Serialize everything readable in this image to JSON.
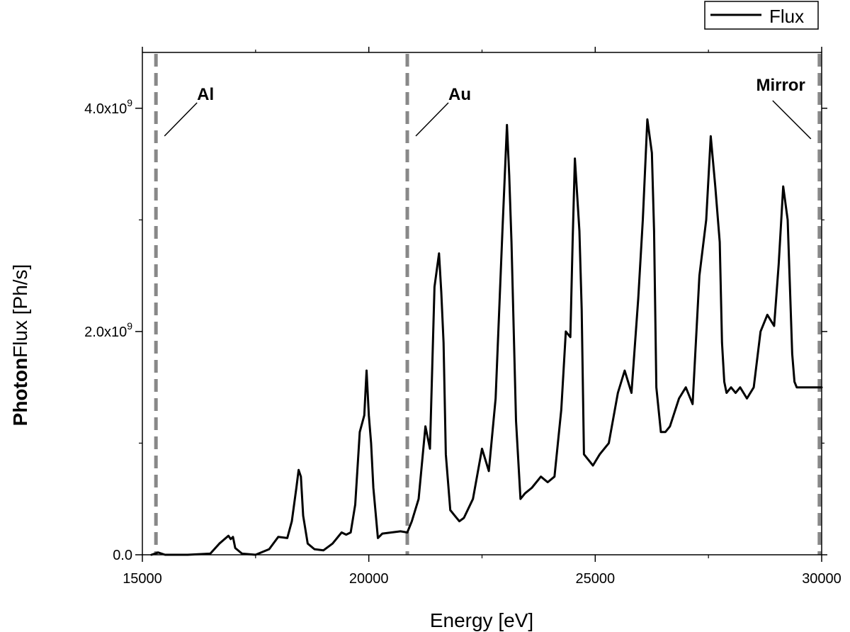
{
  "chart_data": {
    "type": "line",
    "title": "",
    "xlabel": "Energy [eV]",
    "ylabel_bold": "Photon",
    "ylabel_rest": "Flux [Ph/s]",
    "xlim": [
      15000,
      30000
    ],
    "ylim": [
      0,
      4500000000.0
    ],
    "x_ticks": [
      {
        "value": 15000,
        "label": "15000"
      },
      {
        "value": 20000,
        "label": "20000"
      },
      {
        "value": 25000,
        "label": "25000"
      },
      {
        "value": 30000,
        "label": "30000"
      }
    ],
    "y_ticks": [
      {
        "value": 0,
        "mantissa": "0.0",
        "exponent": ""
      },
      {
        "value": 2000000000.0,
        "mantissa": "2.0x10",
        "exponent": "9"
      },
      {
        "value": 4000000000.0,
        "mantissa": "4.0x10",
        "exponent": "9"
      }
    ],
    "y_minor_ticks": [
      1000000000.0,
      3000000000.0
    ],
    "legend": {
      "entries": [
        "Flux"
      ],
      "position": "top-right"
    },
    "series": [
      {
        "name": "Flux",
        "color": "#000000",
        "x": [
          15200,
          15350,
          15500,
          16000,
          16500,
          16700,
          16900,
          16950,
          17000,
          17050,
          17200,
          17500,
          17800,
          18000,
          18200,
          18300,
          18400,
          18450,
          18500,
          18550,
          18650,
          18800,
          19000,
          19200,
          19400,
          19500,
          19600,
          19700,
          19800,
          19900,
          19950,
          20000,
          20050,
          20100,
          20200,
          20300,
          20500,
          20700,
          20850,
          20950,
          21100,
          21250,
          21350,
          21450,
          21550,
          21600,
          21650,
          21700,
          21800,
          21900,
          22000,
          22100,
          22300,
          22500,
          22650,
          22800,
          22950,
          23050,
          23100,
          23150,
          23250,
          23350,
          23450,
          23600,
          23800,
          23950,
          24100,
          24250,
          24350,
          24450,
          24500,
          24550,
          24650,
          24700,
          24750,
          24850,
          24950,
          25100,
          25300,
          25500,
          25650,
          25800,
          25950,
          26050,
          26150,
          26250,
          26300,
          26350,
          26450,
          26550,
          26650,
          26850,
          27000,
          27150,
          27300,
          27450,
          27550,
          27650,
          27750,
          27800,
          27850,
          27900,
          28000,
          28100,
          28200,
          28350,
          28500,
          28650,
          28800,
          28950,
          29050,
          29150,
          29250,
          29350,
          29400,
          29450,
          29550,
          29700,
          29850,
          30000
        ],
        "y": [
          0,
          20000000.0,
          0,
          0,
          10000000.0,
          100000000.0,
          170000000.0,
          140000000.0,
          160000000.0,
          60000000.0,
          10000000.0,
          0,
          50000000.0,
          160000000.0,
          150000000.0,
          300000000.0,
          600000000.0,
          760000000.0,
          700000000.0,
          350000000.0,
          100000000.0,
          50000000.0,
          40000000.0,
          100000000.0,
          200000000.0,
          180000000.0,
          200000000.0,
          450000000.0,
          1100000000.0,
          1250000000.0,
          1650000000.0,
          1250000000.0,
          1000000000.0,
          600000000.0,
          150000000.0,
          190000000.0,
          200000000.0,
          210000000.0,
          200000000.0,
          300000000.0,
          500000000.0,
          1150000000.0,
          950000000.0,
          2400000000.0,
          2700000000.0,
          2350000000.0,
          1900000000.0,
          900000000.0,
          400000000.0,
          350000000.0,
          300000000.0,
          330000000.0,
          500000000.0,
          950000000.0,
          750000000.0,
          1400000000.0,
          2900000000.0,
          3850000000.0,
          3400000000.0,
          2800000000.0,
          1200000000.0,
          500000000.0,
          550000000.0,
          600000000.0,
          700000000.0,
          650000000.0,
          700000000.0,
          1300000000.0,
          2000000000.0,
          1950000000.0,
          2800000000.0,
          3550000000.0,
          2900000000.0,
          2200000000.0,
          900000000.0,
          850000000.0,
          800000000.0,
          900000000.0,
          1000000000.0,
          1450000000.0,
          1650000000.0,
          1450000000.0,
          2300000000.0,
          3000000000.0,
          3900000000.0,
          3600000000.0,
          2900000000.0,
          1500000000.0,
          1100000000.0,
          1100000000.0,
          1150000000.0,
          1400000000.0,
          1500000000.0,
          1350000000.0,
          2500000000.0,
          3000000000.0,
          3750000000.0,
          3300000000.0,
          2800000000.0,
          1900000000.0,
          1550000000.0,
          1450000000.0,
          1500000000.0,
          1450000000.0,
          1500000000.0,
          1400000000.0,
          1500000000.0,
          2000000000.0,
          2150000000.0,
          2050000000.0,
          2600000000.0,
          3300000000.0,
          3000000000.0,
          1800000000.0,
          1550000000.0,
          1500000000.0,
          1500000000.0,
          1500000000.0,
          1500000000.0,
          1500000000.0
        ]
      }
    ],
    "markers": [
      {
        "x": 15300,
        "label": "Al"
      },
      {
        "x": 20850,
        "label": "Au"
      },
      {
        "x": 29950,
        "label": "Mirror"
      }
    ],
    "marker_color": "#888888"
  }
}
